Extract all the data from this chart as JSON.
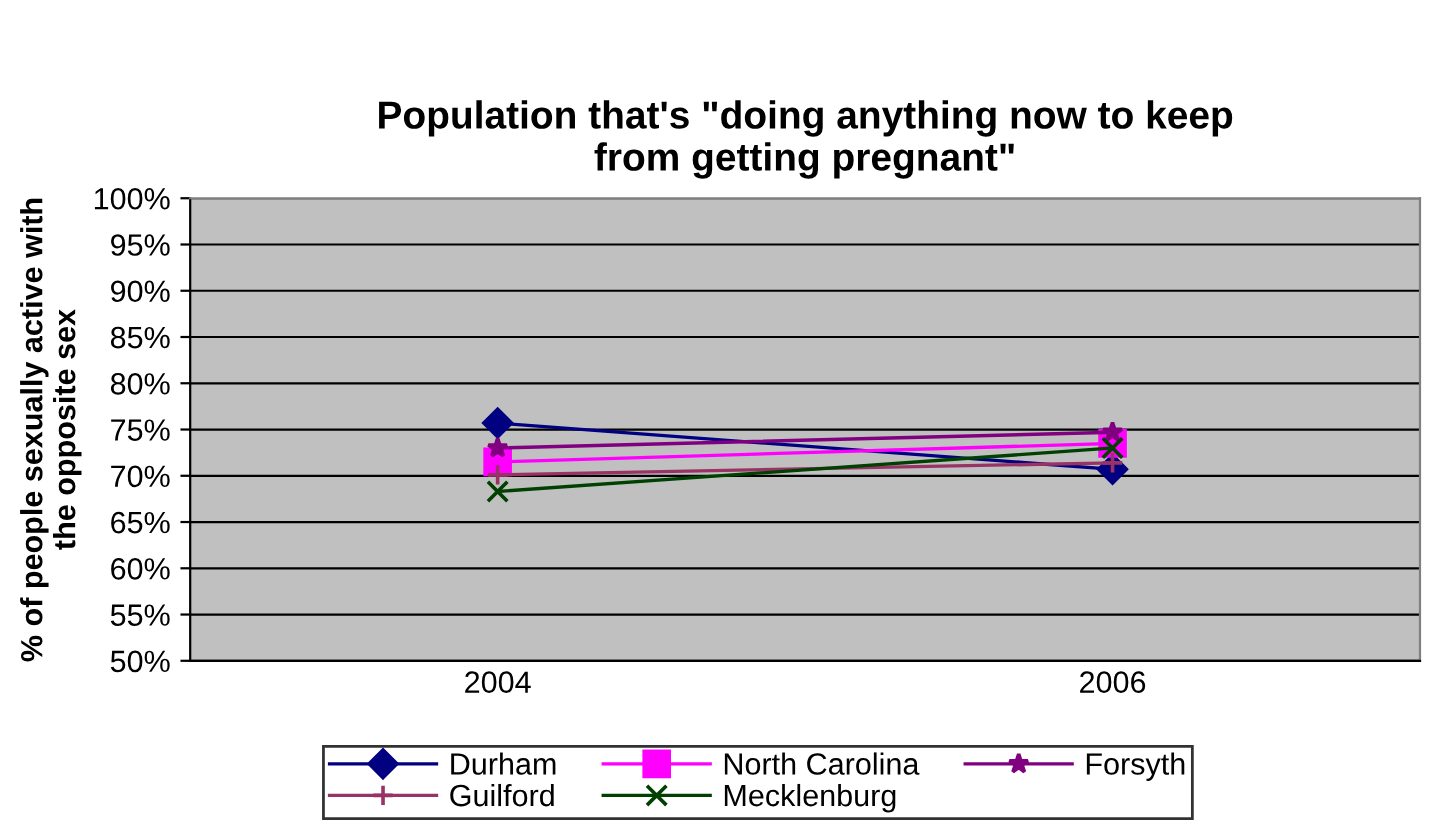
{
  "chart_data": {
    "type": "line",
    "title": "Population that's \"doing anything now to keep\nfrom getting pregnant\"",
    "ylabel": "% of people sexually active with\nthe opposite sex",
    "categories": [
      "2004",
      "2006"
    ],
    "series": [
      {
        "name": "Durham",
        "color": "#000080",
        "marker": "diamond",
        "values": [
          75.7,
          70.7
        ]
      },
      {
        "name": "North Carolina",
        "color": "#ff00ff",
        "marker": "square",
        "values": [
          71.5,
          73.5
        ]
      },
      {
        "name": "Forsyth",
        "color": "#800080",
        "marker": "star",
        "values": [
          73.0,
          74.7
        ]
      },
      {
        "name": "Guilford",
        "color": "#993366",
        "marker": "plus",
        "values": [
          70.1,
          71.4
        ]
      },
      {
        "name": "Mecklenburg",
        "color": "#004000",
        "marker": "cross",
        "values": [
          68.3,
          73.0
        ]
      }
    ],
    "ylim": [
      50,
      100
    ],
    "yticks": [
      {
        "value": 50,
        "label": "50%"
      },
      {
        "value": 55,
        "label": "55%"
      },
      {
        "value": 60,
        "label": "60%"
      },
      {
        "value": 65,
        "label": "65%"
      },
      {
        "value": 70,
        "label": "70%"
      },
      {
        "value": 75,
        "label": "75%"
      },
      {
        "value": 80,
        "label": "80%"
      },
      {
        "value": 85,
        "label": "85%"
      },
      {
        "value": 90,
        "label": "90%"
      },
      {
        "value": 95,
        "label": "95%"
      },
      {
        "value": 100,
        "label": "100%"
      }
    ],
    "grid": "y",
    "legend": "bottom"
  }
}
